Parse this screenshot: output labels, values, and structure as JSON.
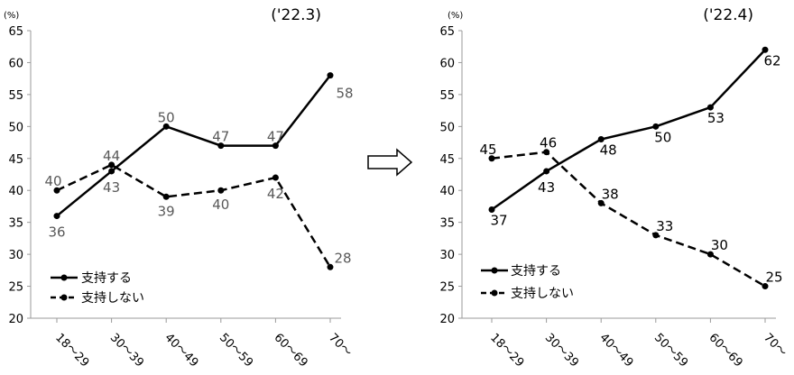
{
  "chart_data": [
    {
      "type": "line",
      "title": "('22.3)",
      "ylabel": "(%)",
      "ylim": [
        20,
        65
      ],
      "yticks": [
        20,
        25,
        30,
        35,
        40,
        45,
        50,
        55,
        60,
        65
      ],
      "categories": [
        "18～29",
        "30～39",
        "40～49",
        "50～59",
        "60～69",
        "70～"
      ],
      "series": [
        {
          "name": "支持する",
          "style": "solid",
          "values": [
            36,
            43,
            50,
            47,
            47,
            58
          ]
        },
        {
          "name": "支持しない",
          "style": "dashed",
          "values": [
            40,
            44,
            39,
            40,
            42,
            28
          ]
        }
      ],
      "legend": "bottom-left"
    },
    {
      "type": "line",
      "title": "('22.4)",
      "ylabel": "(%)",
      "ylim": [
        20,
        65
      ],
      "yticks": [
        20,
        25,
        30,
        35,
        40,
        45,
        50,
        55,
        60,
        65
      ],
      "categories": [
        "18～29",
        "30～39",
        "40～49",
        "50～59",
        "60～69",
        "70～"
      ],
      "series": [
        {
          "name": "支持する",
          "style": "solid",
          "values": [
            37,
            43,
            48,
            50,
            53,
            62
          ]
        },
        {
          "name": "支持しない",
          "style": "dashed",
          "values": [
            45,
            46,
            38,
            33,
            30,
            25
          ]
        }
      ],
      "legend": "bottom-left"
    }
  ],
  "arrow_icon": "right-outline-arrow-icon",
  "colors": {
    "line": "#000000",
    "label_gray": "#595959",
    "label_black": "#000000",
    "axis": "#9a9a9a"
  }
}
